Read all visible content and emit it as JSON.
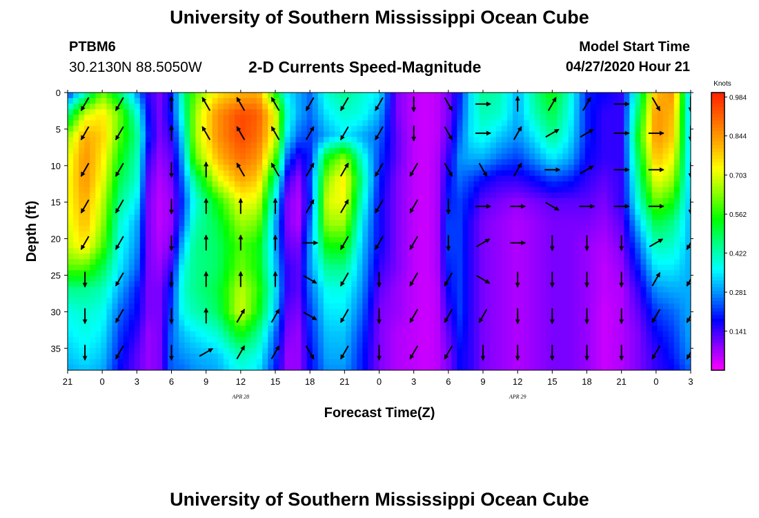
{
  "header": {
    "title": "University of Southern Mississippi Ocean Cube",
    "station_id": "PTBM6",
    "station_coords": "30.2130N 88.5050W",
    "chart_title": "2-D Currents Speed-Magnitude",
    "model_start_label": "Model Start Time",
    "model_start_value": "04/27/2020 Hour 21"
  },
  "footer": {
    "title": "University of Southern Mississippi Ocean Cube"
  },
  "chart_data": {
    "type": "heatmap",
    "title": "2-D Currents Speed-Magnitude",
    "xlabel": "Forecast Time(Z)",
    "ylabel": "Depth (ft)",
    "x_tick_labels": [
      "21",
      "0",
      "3",
      "6",
      "9",
      "12",
      "15",
      "18",
      "21",
      "0",
      "3",
      "6",
      "9",
      "12",
      "15",
      "18",
      "21",
      "0",
      "3"
    ],
    "date_labels": [
      {
        "label": "APR 28",
        "at_tick_index": 5
      },
      {
        "label": "APR 29",
        "at_tick_index": 13
      }
    ],
    "x_hours_range": [
      0,
      54
    ],
    "y_ticks": [
      0,
      5,
      10,
      15,
      20,
      25,
      30,
      35
    ],
    "ylim": [
      38,
      0
    ],
    "y_inverted": true,
    "colorbar": {
      "unit": "Knots",
      "tick_labels": [
        "0.984",
        "0.844",
        "0.703",
        "0.562",
        "0.422",
        "0.281",
        "0.141"
      ],
      "range": [
        0,
        1.0
      ],
      "colors": [
        "#ff00ff",
        "#8800ff",
        "#0000ff",
        "#0088ff",
        "#00ffff",
        "#00ff88",
        "#00ff00",
        "#88ff00",
        "#ffff00",
        "#ffaa00",
        "#ff6600",
        "#ff2200"
      ]
    },
    "speed_grid": {
      "hours": [
        0,
        1.5,
        3,
        4.5,
        6,
        7,
        8,
        9,
        10,
        11,
        13,
        15,
        16.5,
        18,
        19,
        20,
        21,
        22.5,
        24,
        25.5,
        27,
        28.5,
        30,
        31,
        32,
        33,
        34,
        35,
        36,
        37.5,
        39,
        40.5,
        42,
        43.5,
        45,
        46.5,
        48,
        49.5,
        51,
        52.5,
        54
      ],
      "depths": [
        0,
        3,
        6,
        9,
        12,
        15,
        18,
        21,
        24,
        27,
        30,
        33,
        36,
        38
      ],
      "rows": [
        [
          0.2,
          0.4,
          0.62,
          0.48,
          0.28,
          0.15,
          0.1,
          0.18,
          0.45,
          0.6,
          0.75,
          0.8,
          0.82,
          0.55,
          0.35,
          0.3,
          0.25,
          0.4,
          0.45,
          0.4,
          0.35,
          0.1,
          0.05,
          0.04,
          0.05,
          0.1,
          0.2,
          0.35,
          0.45,
          0.42,
          0.3,
          0.45,
          0.55,
          0.4,
          0.2,
          0.18,
          0.15,
          0.45,
          0.8,
          0.85,
          0.3
        ],
        [
          0.45,
          0.7,
          0.75,
          0.62,
          0.4,
          0.18,
          0.1,
          0.2,
          0.4,
          0.65,
          0.85,
          0.95,
          0.92,
          0.72,
          0.4,
          0.3,
          0.25,
          0.35,
          0.4,
          0.38,
          0.3,
          0.1,
          0.05,
          0.04,
          0.05,
          0.1,
          0.22,
          0.35,
          0.42,
          0.4,
          0.3,
          0.42,
          0.5,
          0.38,
          0.2,
          0.15,
          0.15,
          0.5,
          0.85,
          0.8,
          0.3
        ],
        [
          0.65,
          0.82,
          0.78,
          0.6,
          0.45,
          0.2,
          0.1,
          0.15,
          0.35,
          0.65,
          0.85,
          0.95,
          0.9,
          0.7,
          0.35,
          0.25,
          0.22,
          0.3,
          0.35,
          0.3,
          0.25,
          0.12,
          0.05,
          0.04,
          0.05,
          0.12,
          0.25,
          0.35,
          0.38,
          0.32,
          0.28,
          0.35,
          0.45,
          0.35,
          0.2,
          0.15,
          0.15,
          0.55,
          0.85,
          0.78,
          0.3
        ],
        [
          0.7,
          0.85,
          0.75,
          0.55,
          0.42,
          0.15,
          0.08,
          0.12,
          0.3,
          0.6,
          0.8,
          0.9,
          0.85,
          0.6,
          0.25,
          0.15,
          0.2,
          0.55,
          0.65,
          0.4,
          0.22,
          0.12,
          0.05,
          0.04,
          0.06,
          0.15,
          0.28,
          0.3,
          0.3,
          0.25,
          0.22,
          0.28,
          0.35,
          0.3,
          0.18,
          0.15,
          0.15,
          0.5,
          0.8,
          0.72,
          0.3
        ],
        [
          0.72,
          0.85,
          0.72,
          0.5,
          0.4,
          0.12,
          0.06,
          0.1,
          0.25,
          0.45,
          0.7,
          0.82,
          0.78,
          0.45,
          0.15,
          0.08,
          0.22,
          0.65,
          0.75,
          0.45,
          0.2,
          0.1,
          0.05,
          0.04,
          0.06,
          0.18,
          0.25,
          0.22,
          0.18,
          0.15,
          0.15,
          0.18,
          0.22,
          0.2,
          0.15,
          0.12,
          0.15,
          0.45,
          0.72,
          0.65,
          0.3
        ],
        [
          0.72,
          0.82,
          0.68,
          0.45,
          0.35,
          0.1,
          0.05,
          0.08,
          0.22,
          0.38,
          0.55,
          0.72,
          0.7,
          0.35,
          0.1,
          0.06,
          0.2,
          0.7,
          0.72,
          0.4,
          0.18,
          0.1,
          0.05,
          0.04,
          0.06,
          0.2,
          0.22,
          0.18,
          0.12,
          0.1,
          0.08,
          0.1,
          0.12,
          0.12,
          0.12,
          0.1,
          0.15,
          0.4,
          0.62,
          0.55,
          0.3
        ],
        [
          0.7,
          0.8,
          0.65,
          0.4,
          0.3,
          0.1,
          0.05,
          0.08,
          0.25,
          0.42,
          0.5,
          0.65,
          0.62,
          0.3,
          0.1,
          0.06,
          0.25,
          0.65,
          0.65,
          0.35,
          0.18,
          0.1,
          0.05,
          0.04,
          0.06,
          0.22,
          0.22,
          0.15,
          0.1,
          0.08,
          0.06,
          0.08,
          0.1,
          0.1,
          0.1,
          0.08,
          0.12,
          0.32,
          0.5,
          0.45,
          0.3
        ],
        [
          0.68,
          0.75,
          0.6,
          0.38,
          0.28,
          0.1,
          0.06,
          0.1,
          0.32,
          0.45,
          0.48,
          0.6,
          0.55,
          0.3,
          0.12,
          0.1,
          0.28,
          0.55,
          0.55,
          0.32,
          0.18,
          0.1,
          0.05,
          0.04,
          0.06,
          0.22,
          0.22,
          0.15,
          0.1,
          0.08,
          0.06,
          0.08,
          0.1,
          0.1,
          0.08,
          0.06,
          0.1,
          0.25,
          0.42,
          0.4,
          0.3
        ],
        [
          0.6,
          0.6,
          0.5,
          0.35,
          0.25,
          0.1,
          0.08,
          0.15,
          0.38,
          0.45,
          0.48,
          0.62,
          0.55,
          0.32,
          0.15,
          0.12,
          0.28,
          0.45,
          0.45,
          0.3,
          0.15,
          0.1,
          0.05,
          0.04,
          0.06,
          0.2,
          0.22,
          0.15,
          0.1,
          0.08,
          0.06,
          0.08,
          0.1,
          0.1,
          0.08,
          0.05,
          0.08,
          0.2,
          0.35,
          0.35,
          0.3
        ],
        [
          0.45,
          0.45,
          0.42,
          0.3,
          0.2,
          0.1,
          0.1,
          0.2,
          0.4,
          0.45,
          0.5,
          0.68,
          0.58,
          0.35,
          0.15,
          0.12,
          0.25,
          0.38,
          0.38,
          0.28,
          0.12,
          0.08,
          0.05,
          0.04,
          0.05,
          0.18,
          0.22,
          0.15,
          0.1,
          0.08,
          0.06,
          0.08,
          0.1,
          0.1,
          0.08,
          0.05,
          0.06,
          0.15,
          0.28,
          0.3,
          0.3
        ],
        [
          0.38,
          0.4,
          0.38,
          0.25,
          0.18,
          0.1,
          0.1,
          0.22,
          0.38,
          0.42,
          0.48,
          0.7,
          0.55,
          0.32,
          0.12,
          0.1,
          0.22,
          0.35,
          0.35,
          0.25,
          0.1,
          0.08,
          0.05,
          0.04,
          0.05,
          0.15,
          0.22,
          0.15,
          0.1,
          0.08,
          0.06,
          0.08,
          0.1,
          0.1,
          0.08,
          0.04,
          0.06,
          0.12,
          0.22,
          0.25,
          0.3
        ],
        [
          0.35,
          0.38,
          0.35,
          0.22,
          0.15,
          0.08,
          0.1,
          0.25,
          0.32,
          0.35,
          0.4,
          0.55,
          0.45,
          0.25,
          0.1,
          0.08,
          0.2,
          0.32,
          0.32,
          0.22,
          0.1,
          0.06,
          0.05,
          0.04,
          0.05,
          0.12,
          0.2,
          0.15,
          0.1,
          0.08,
          0.06,
          0.08,
          0.1,
          0.1,
          0.08,
          0.04,
          0.06,
          0.1,
          0.18,
          0.22,
          0.3
        ],
        [
          0.32,
          0.35,
          0.32,
          0.2,
          0.12,
          0.08,
          0.1,
          0.25,
          0.28,
          0.3,
          0.32,
          0.42,
          0.38,
          0.22,
          0.08,
          0.08,
          0.18,
          0.3,
          0.3,
          0.2,
          0.1,
          0.06,
          0.05,
          0.04,
          0.05,
          0.1,
          0.18,
          0.15,
          0.1,
          0.08,
          0.06,
          0.08,
          0.1,
          0.1,
          0.08,
          0.04,
          0.06,
          0.1,
          0.15,
          0.2,
          0.28
        ],
        [
          0.3,
          0.32,
          0.3,
          0.18,
          0.12,
          0.08,
          0.1,
          0.25,
          0.25,
          0.28,
          0.3,
          0.38,
          0.35,
          0.2,
          0.08,
          0.08,
          0.18,
          0.28,
          0.28,
          0.2,
          0.1,
          0.06,
          0.05,
          0.04,
          0.05,
          0.1,
          0.18,
          0.15,
          0.1,
          0.08,
          0.06,
          0.08,
          0.1,
          0.1,
          0.08,
          0.04,
          0.06,
          0.1,
          0.15,
          0.18,
          0.25
        ]
      ]
    },
    "arrow_hours": [
      1.5,
      4.5,
      9,
      12,
      15,
      18,
      21,
      24,
      27,
      30,
      33,
      36,
      39,
      42,
      45,
      48,
      51,
      54
    ],
    "arrow_depths": [
      1,
      5,
      10,
      15,
      20,
      25,
      30,
      35
    ],
    "arrow_directions_deg": [
      [
        210,
        210,
        0,
        330,
        330,
        330,
        210,
        210,
        210,
        180,
        150,
        90,
        0,
        30,
        30,
        90,
        150,
        180
      ],
      [
        210,
        210,
        0,
        330,
        330,
        330,
        30,
        210,
        210,
        180,
        150,
        90,
        30,
        60,
        60,
        90,
        90,
        180
      ],
      [
        210,
        210,
        180,
        0,
        330,
        330,
        30,
        30,
        210,
        210,
        150,
        150,
        30,
        90,
        60,
        90,
        90,
        180
      ],
      [
        210,
        210,
        180,
        0,
        0,
        0,
        30,
        30,
        210,
        210,
        180,
        90,
        90,
        120,
        90,
        90,
        90,
        180
      ],
      [
        210,
        210,
        180,
        0,
        0,
        0,
        90,
        210,
        210,
        210,
        180,
        60,
        90,
        180,
        180,
        180,
        60,
        210
      ],
      [
        180,
        210,
        180,
        0,
        0,
        0,
        120,
        210,
        180,
        210,
        210,
        120,
        180,
        180,
        180,
        180,
        30,
        210
      ],
      [
        180,
        210,
        180,
        0,
        30,
        30,
        120,
        210,
        180,
        210,
        210,
        210,
        180,
        180,
        180,
        180,
        210,
        210
      ],
      [
        180,
        210,
        180,
        60,
        30,
        30,
        150,
        210,
        180,
        210,
        210,
        180,
        180,
        180,
        180,
        180,
        210,
        210
      ]
    ]
  }
}
